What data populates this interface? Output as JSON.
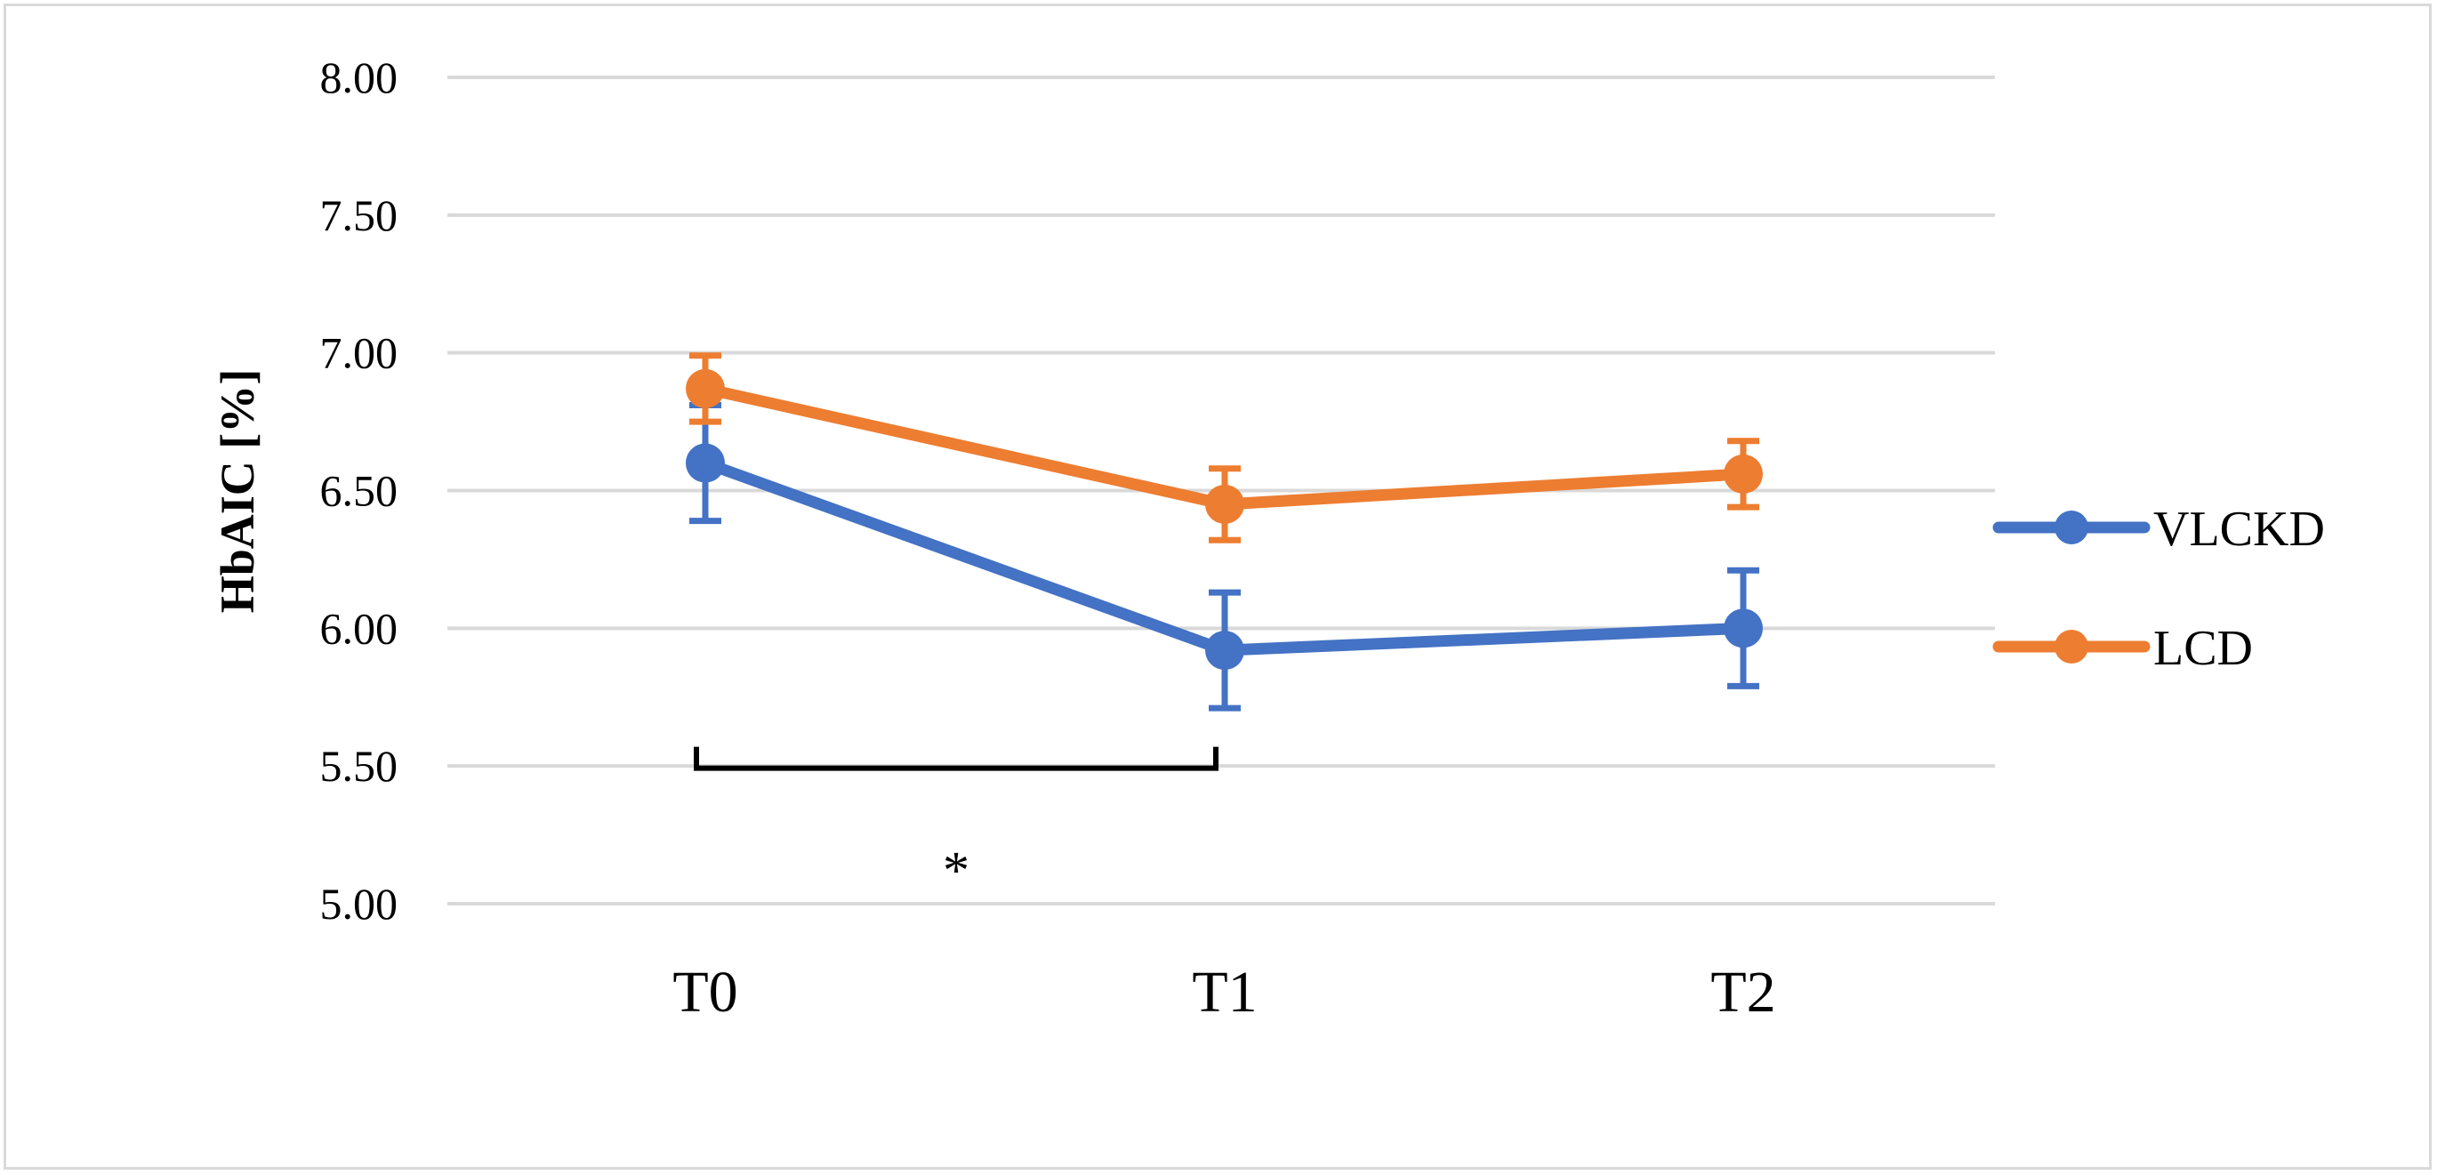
{
  "chart_data": {
    "type": "line",
    "title": "",
    "xlabel": "",
    "ylabel": "HbAIC [%]",
    "ylim": [
      5.0,
      8.0
    ],
    "yticks": [
      5.0,
      5.5,
      6.0,
      6.5,
      7.0,
      7.5,
      8.0
    ],
    "ytick_labels": [
      "5.00",
      "5.50",
      "6.00",
      "6.50",
      "7.00",
      "7.50",
      "8.00"
    ],
    "categories": [
      "T0",
      "T1",
      "T2"
    ],
    "grid": true,
    "legend_position": "right",
    "series": [
      {
        "name": "VLCKD",
        "color": "#4472c4",
        "values": [
          6.6,
          5.92,
          6.0
        ],
        "error": [
          0.21,
          0.21,
          0.21
        ]
      },
      {
        "name": "LCD",
        "color": "#ed7d31",
        "values": [
          6.87,
          6.45,
          6.56
        ],
        "error": [
          0.12,
          0.13,
          0.12
        ]
      }
    ],
    "annotations": [
      {
        "type": "significance-bracket",
        "from": "T0",
        "to": "T1",
        "y": 5.55,
        "label": "*"
      }
    ]
  }
}
